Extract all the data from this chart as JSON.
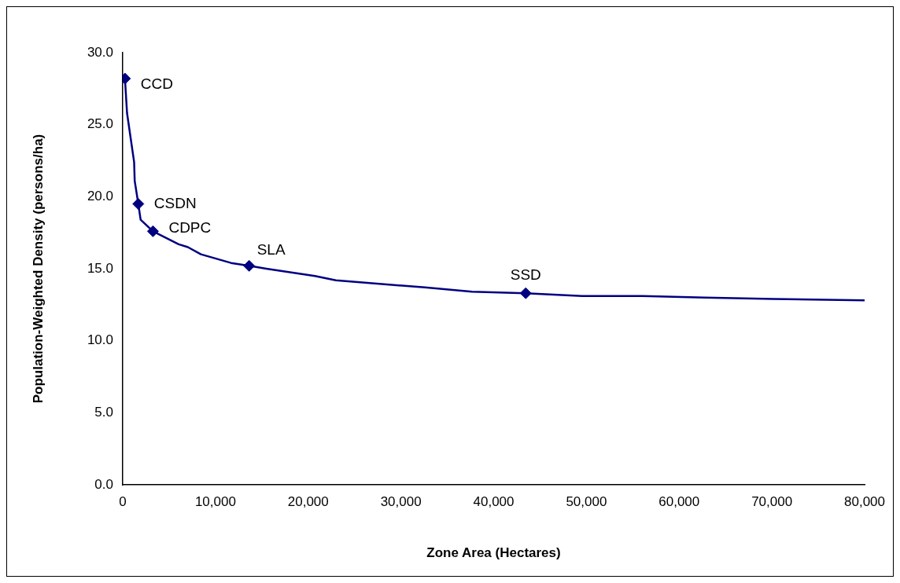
{
  "chart_data": {
    "type": "line",
    "xlabel": "Zone Area (Hectares)",
    "ylabel": "Population-Weighted Density (persons/ha)",
    "series": [
      {
        "type": "line",
        "color": "#000080",
        "marker": "none",
        "x": [
          240,
          466,
          1230,
          1290,
          1680,
          1930,
          3260,
          6030,
          7020,
          8430,
          11680,
          13630,
          15490,
          20720,
          22980,
          32580,
          37670,
          43460,
          49530,
          56030,
          62810,
          70150,
          80000
        ],
        "values": [
          28.2,
          25.8,
          22.4,
          21.1,
          19.5,
          18.4,
          17.6,
          16.7,
          16.5,
          16.0,
          15.4,
          15.2,
          15.0,
          14.5,
          14.2,
          13.7,
          13.4,
          13.3,
          13.1,
          13.1,
          13.0,
          12.9,
          12.8
        ]
      },
      {
        "type": "scatter",
        "color": "#000080",
        "marker": "diamond",
        "x": [
          240,
          1680,
          3260,
          13630,
          43460
        ],
        "values": [
          28.2,
          19.5,
          17.6,
          15.2,
          13.3
        ]
      }
    ],
    "annotations": [
      {
        "text": "CCD",
        "x": 240,
        "y": 28.2
      },
      {
        "text": "CSDN",
        "x": 1680,
        "y": 19.5
      },
      {
        "text": "CDPC",
        "x": 3260,
        "y": 17.6
      },
      {
        "text": "SLA",
        "x": 13630,
        "y": 15.2
      },
      {
        "text": "SSD",
        "x": 43460,
        "y": 13.3
      }
    ],
    "xlim": [
      0,
      80000
    ],
    "xticks": [
      0,
      {
        "value": 10000,
        "label": "10,000"
      },
      {
        "value": 20000,
        "label": "20,000"
      },
      {
        "value": 30000,
        "label": "30,000"
      },
      {
        "value": 40000,
        "label": "40,000"
      },
      {
        "value": 50000,
        "label": "50,000"
      },
      {
        "value": 60000,
        "label": "60,000"
      },
      {
        "value": 70000,
        "label": "70,000"
      },
      {
        "value": 80000,
        "label": "80,000"
      }
    ],
    "ylim": [
      0,
      30
    ],
    "yticks": [
      {
        "value": 0,
        "label": "0.0"
      },
      {
        "value": 5,
        "label": "5.0"
      },
      {
        "value": 10,
        "label": "10.0"
      },
      {
        "value": 15,
        "label": "15.0"
      },
      {
        "value": 20,
        "label": "20.0"
      },
      {
        "value": 25,
        "label": "25.0"
      },
      {
        "value": 30,
        "label": "30.0"
      }
    ],
    "grid": false,
    "legend": false
  }
}
